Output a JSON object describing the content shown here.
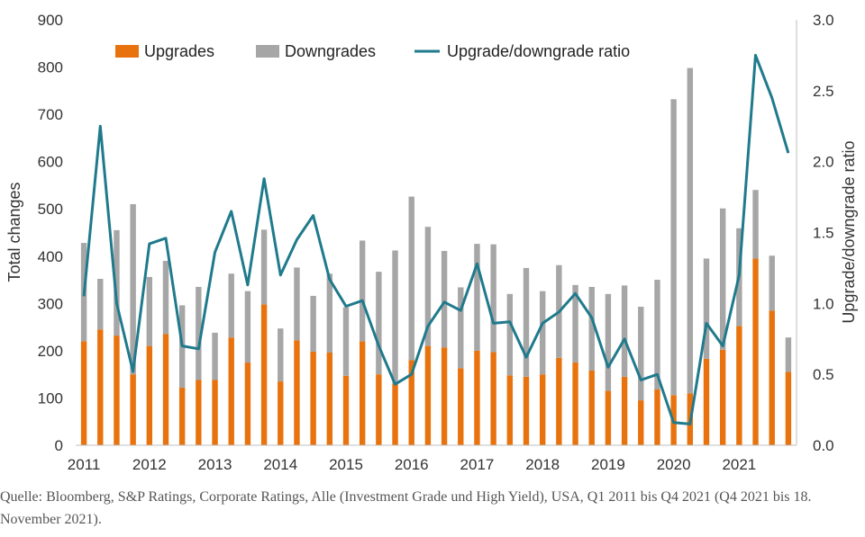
{
  "chart_data": {
    "type": "bar",
    "stacked": true,
    "x_tick_labels": [
      "2011",
      "2012",
      "2013",
      "2014",
      "2015",
      "2016",
      "2017",
      "2018",
      "2019",
      "2020",
      "2021"
    ],
    "periods": 44,
    "series": [
      {
        "name": "Upgrades",
        "type": "bar",
        "axis": "left",
        "color": "#e8730e",
        "values": [
          220,
          245,
          232,
          150,
          210,
          235,
          122,
          138,
          138,
          228,
          175,
          298,
          135,
          222,
          198,
          196,
          147,
          220,
          150,
          130,
          180,
          210,
          207,
          163,
          200,
          197,
          148,
          145,
          150,
          185,
          175,
          158,
          115,
          145,
          95,
          118,
          106,
          110,
          183,
          202,
          252,
          395,
          285,
          155
        ]
      },
      {
        "name": "Downgrades",
        "type": "bar",
        "axis": "left",
        "color": "#a6a6a6",
        "values": [
          208,
          107,
          223,
          360,
          146,
          155,
          174,
          197,
          100,
          135,
          151,
          158,
          112,
          154,
          118,
          167,
          145,
          213,
          217,
          282,
          346,
          252,
          204,
          171,
          226,
          228,
          172,
          230,
          176,
          196,
          164,
          177,
          205,
          193,
          198,
          232,
          626,
          688,
          212,
          299,
          207,
          145,
          116,
          73
        ]
      },
      {
        "name": "Upgrade/downgrade ratio",
        "type": "line",
        "axis": "right",
        "color": "#1f7a8c",
        "values": [
          1.05,
          2.25,
          1.0,
          0.52,
          1.42,
          1.46,
          0.7,
          0.68,
          1.36,
          1.65,
          1.13,
          1.88,
          1.2,
          1.45,
          1.62,
          1.17,
          0.98,
          1.02,
          0.7,
          0.43,
          0.5,
          0.84,
          1.01,
          0.95,
          1.28,
          0.86,
          0.87,
          0.62,
          0.86,
          0.94,
          1.07,
          0.9,
          0.55,
          0.75,
          0.46,
          0.5,
          0.16,
          0.15,
          0.86,
          0.7,
          1.2,
          2.75,
          2.45,
          2.06
        ]
      }
    ],
    "ylabel": "Total changes",
    "ylim": [
      0,
      900
    ],
    "y_ticks": [
      "900",
      "800",
      "700",
      "600",
      "500",
      "400",
      "300",
      "200",
      "100",
      "0"
    ],
    "y2label": "Upgrade/downgrade ratio",
    "y2lim": [
      0,
      3.0
    ],
    "y2_ticks": [
      "3.0",
      "2.5",
      "2.0",
      "1.5",
      "1.0",
      "0.5",
      "0.0"
    ],
    "legend_position": "top"
  },
  "caption": "Quelle: Bloomberg, S&P Ratings, Corporate Ratings, Alle (Investment Grade und High Yield), USA, Q1 2011 bis Q4 2021 (Q4 2021 bis 18. November 2021)."
}
